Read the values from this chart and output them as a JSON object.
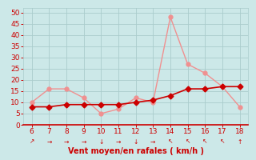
{
  "x": [
    6,
    7,
    8,
    9,
    10,
    11,
    12,
    13,
    14,
    15,
    16,
    17,
    18
  ],
  "wind_avg": [
    8,
    8,
    9,
    9,
    9,
    9,
    10,
    11,
    13,
    16,
    16,
    17,
    17
  ],
  "wind_gust": [
    10,
    16,
    16,
    12,
    5,
    7,
    12,
    10,
    48,
    27,
    23,
    17,
    8
  ],
  "color_light_line": "#f09090",
  "color_dark_line": "#cc0000",
  "bg_color": "#cce8e8",
  "grid_color": "#aacccc",
  "xlabel": "Vent moyen/en rafales ( km/h )",
  "xlabel_color": "#cc0000",
  "tick_color": "#cc0000",
  "yticks": [
    0,
    5,
    10,
    15,
    20,
    25,
    30,
    35,
    40,
    45,
    50
  ],
  "xticks": [
    6,
    7,
    8,
    9,
    10,
    11,
    12,
    13,
    14,
    15,
    16,
    17,
    18
  ],
  "ylim": [
    0,
    52
  ],
  "xlim": [
    5.5,
    18.5
  ],
  "arrow_symbols": [
    "↗",
    "→",
    "→",
    "→",
    "↓",
    "→",
    "↓",
    "→",
    "↖",
    "↖",
    "↖",
    "↖",
    "↑"
  ],
  "lw_light": 1.0,
  "lw_dark": 1.2,
  "ms_light": 3.5,
  "ms_dark": 3.5
}
